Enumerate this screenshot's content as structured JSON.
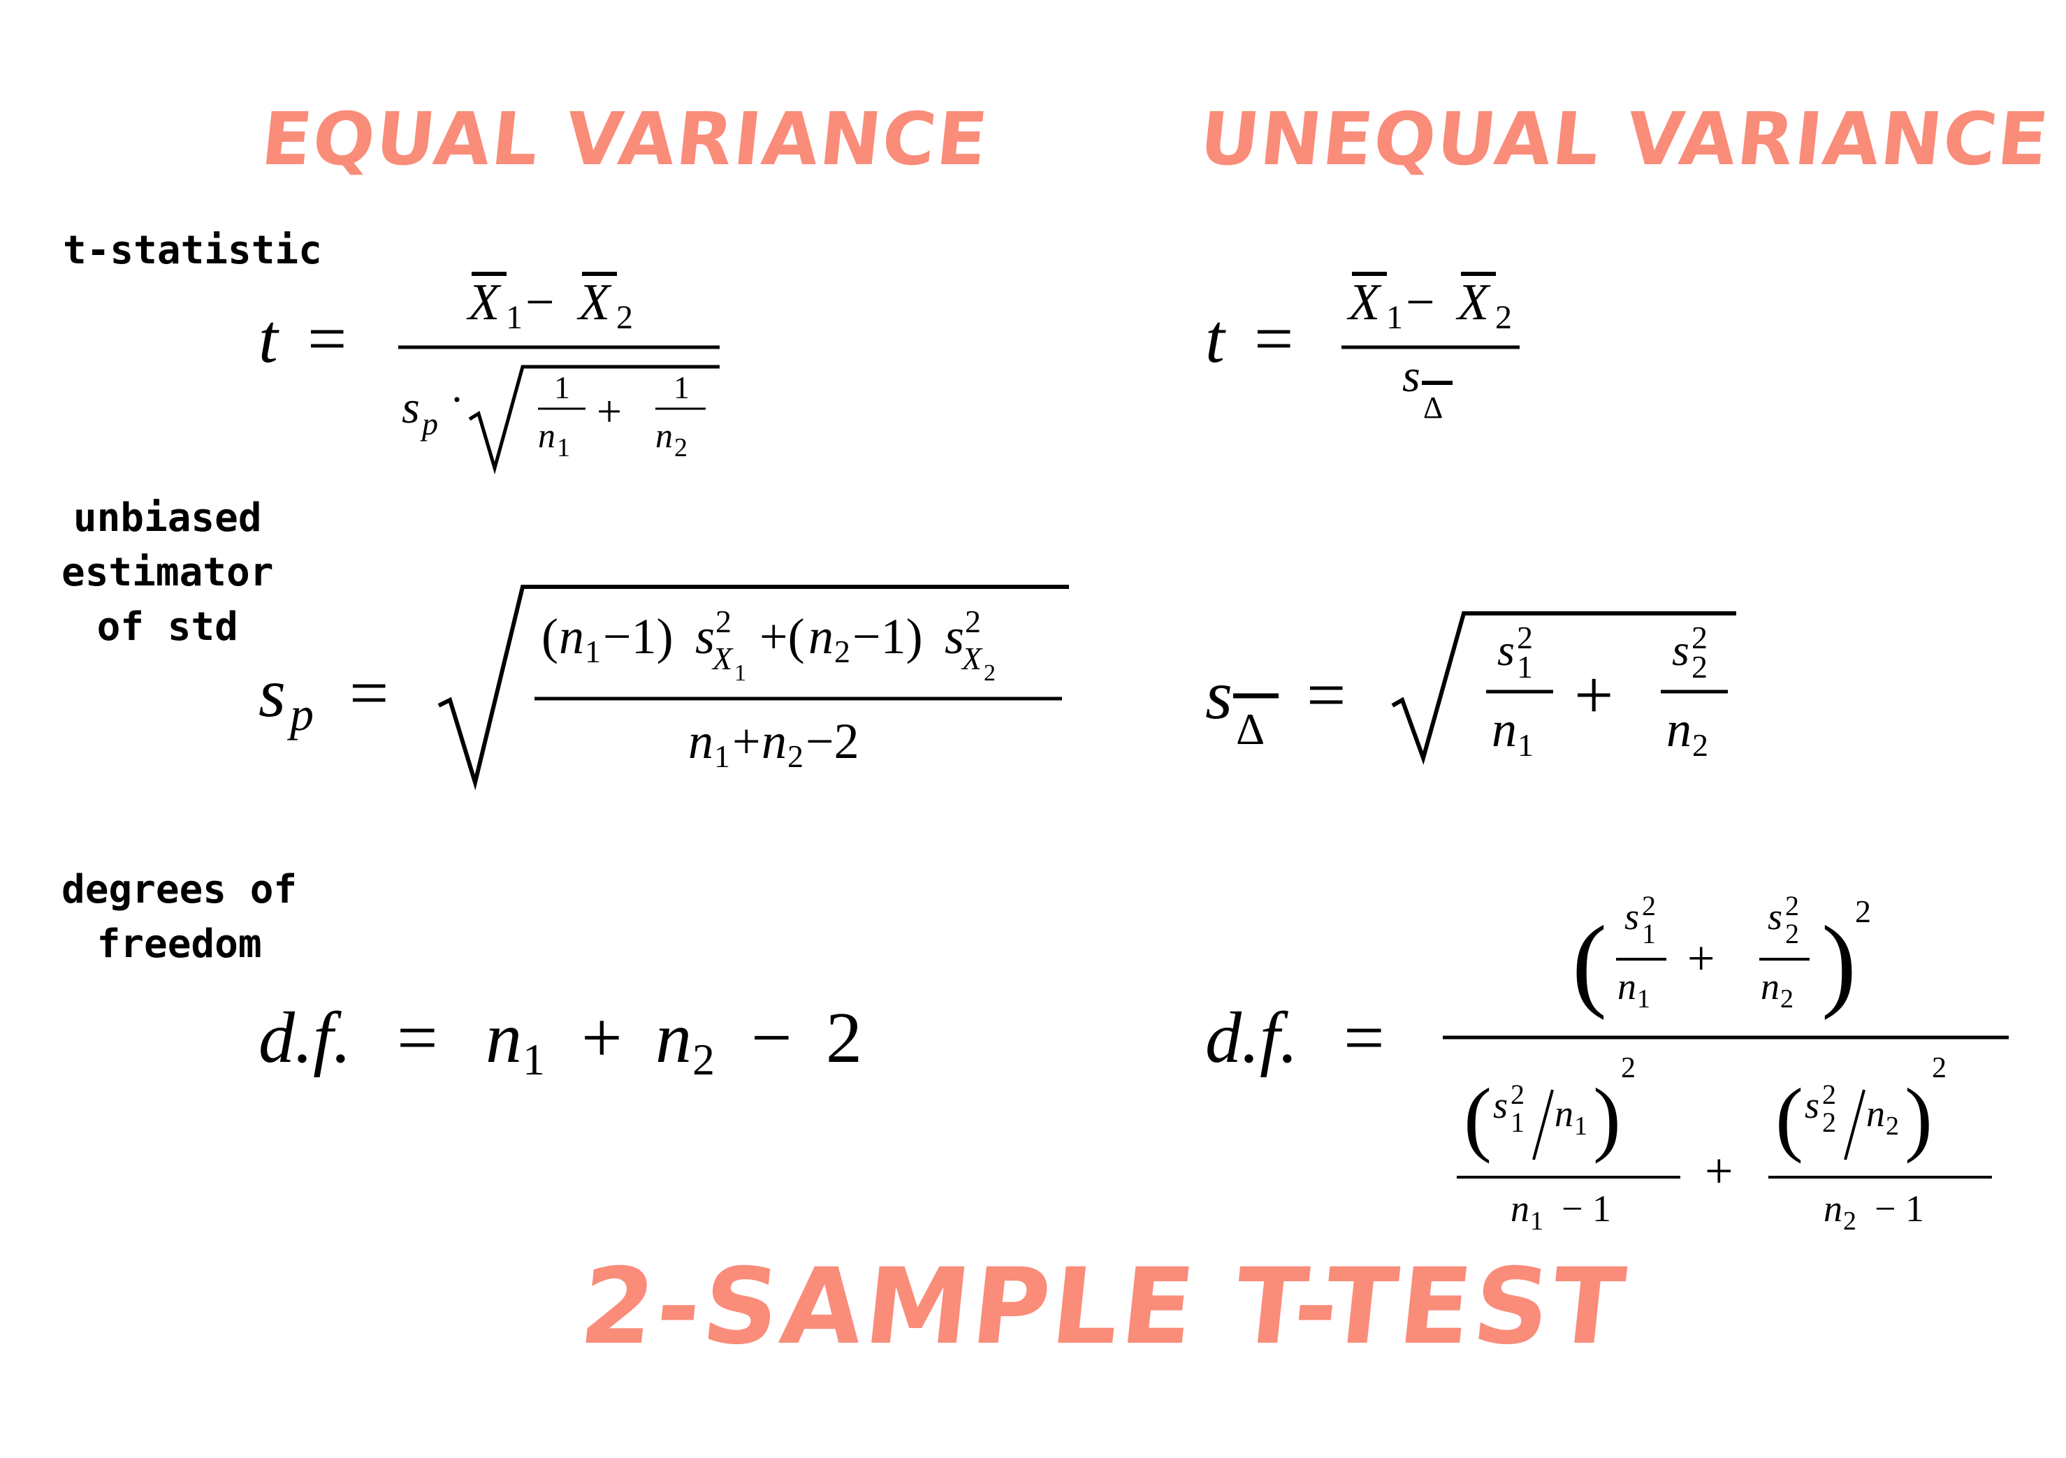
{
  "headings": {
    "equal_variance": "EQUAL VARIANCE",
    "unequal_variance": "UNEQUAL VARIANCE",
    "title": "2-SAMPLE T-TEST"
  },
  "labels": {
    "t_statistic": "t-statistic",
    "unbiased_estimator": [
      "unbiased",
      "estimator",
      "of std"
    ],
    "degrees_of_freedom": [
      "degrees of",
      "freedom"
    ]
  },
  "accent_color": "#fa8c7a"
}
